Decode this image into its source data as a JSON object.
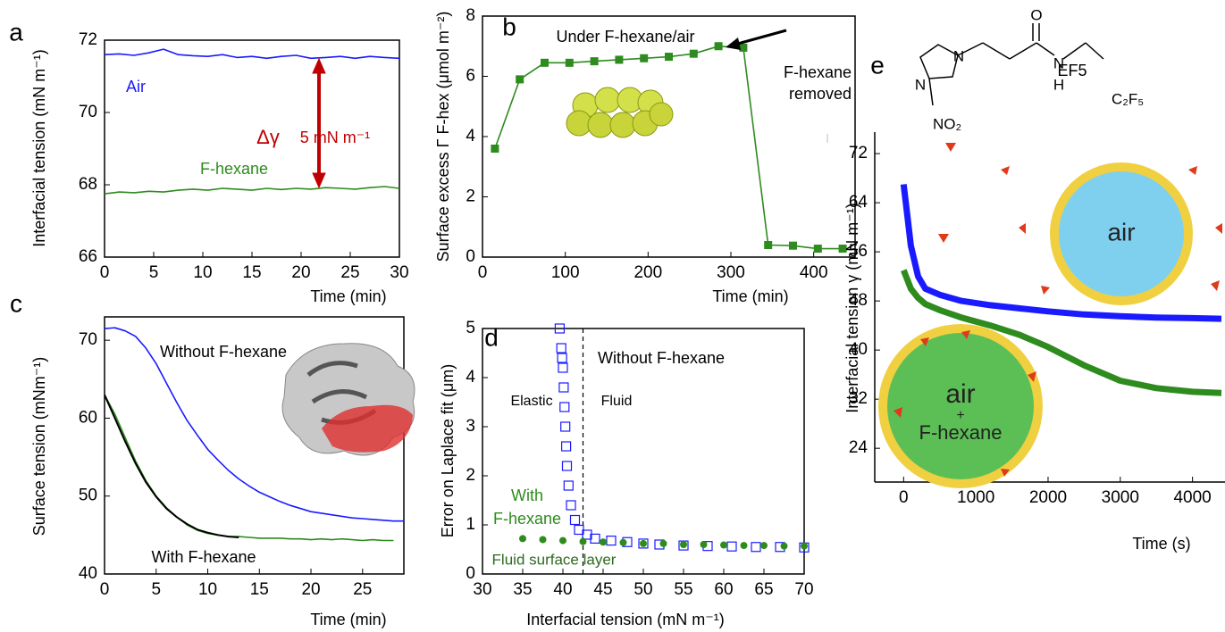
{
  "chart_data": [
    {
      "type": "line",
      "panel_label": "a",
      "frame": "box",
      "xlabel": "Time (min)",
      "ylabel": "Interfacial tension (mN m⁻¹)",
      "xlim": [
        0,
        30
      ],
      "ylim": [
        66,
        72
      ],
      "xticks": [
        0,
        5,
        10,
        15,
        20,
        25,
        30
      ],
      "yticks": [
        66,
        68,
        70,
        72
      ],
      "series": [
        {
          "name": "Air",
          "color": "#1a1aff",
          "x": [
            0,
            1.5,
            3,
            4.5,
            6,
            7.5,
            9,
            10.5,
            12,
            13.5,
            15,
            16.5,
            18,
            19.5,
            21,
            22.5,
            24,
            25.5,
            27,
            28.5,
            30
          ],
          "values": [
            71.6,
            71.62,
            71.58,
            71.65,
            71.75,
            71.6,
            71.57,
            71.55,
            71.6,
            71.52,
            71.55,
            71.5,
            71.55,
            71.58,
            71.5,
            71.52,
            71.55,
            71.5,
            71.55,
            71.52,
            71.5
          ]
        },
        {
          "name": "F-hexane",
          "color": "#2e8b1e",
          "x": [
            0,
            1.5,
            3,
            4.5,
            6,
            7.5,
            9,
            10.5,
            12,
            13.5,
            15,
            16.5,
            18,
            19.5,
            21,
            22.5,
            24,
            25.5,
            27,
            28.5,
            30
          ],
          "values": [
            67.75,
            67.8,
            67.78,
            67.82,
            67.8,
            67.85,
            67.88,
            67.85,
            67.9,
            67.88,
            67.85,
            67.9,
            67.87,
            67.9,
            67.88,
            67.92,
            67.9,
            67.88,
            67.92,
            67.95,
            67.9
          ]
        }
      ],
      "annotations": [
        "Δγ",
        "5 mN m⁻¹"
      ]
    },
    {
      "type": "line",
      "panel_label": "b",
      "frame": "box",
      "markers": true,
      "xlabel": "Time (min)",
      "ylabel": "Surface excess Γ F-hex (μmol m⁻²)",
      "xlim": [
        0,
        450
      ],
      "ylim": [
        0,
        8
      ],
      "xticks": [
        0,
        100,
        200,
        300,
        400
      ],
      "yticks": [
        0,
        2,
        4,
        6,
        8
      ],
      "series": [
        {
          "color": "#2e8b1e",
          "x": [
            15,
            45,
            75,
            105,
            135,
            165,
            195,
            225,
            255,
            285,
            315,
            345,
            375,
            405,
            435
          ],
          "values": [
            3.6,
            5.9,
            6.45,
            6.45,
            6.5,
            6.55,
            6.6,
            6.65,
            6.75,
            7.0,
            6.95,
            0.4,
            0.38,
            0.28,
            0.28
          ]
        }
      ],
      "annotations": [
        "Under F-hexane/air",
        "F-hexane",
        "removed"
      ]
    },
    {
      "type": "line",
      "panel_label": "c",
      "frame": "box",
      "xlabel": "Time (min)",
      "ylabel": "Surface tension (mNm⁻¹)",
      "xlim": [
        0,
        29
      ],
      "ylim": [
        40,
        73
      ],
      "xticks": [
        0,
        5,
        10,
        15,
        20,
        25
      ],
      "yticks": [
        40,
        50,
        60,
        70
      ],
      "series": [
        {
          "name": "Without F-hexane",
          "color": "#1a1aff",
          "x": [
            0,
            1,
            2,
            3,
            4,
            5,
            6,
            7,
            8,
            9,
            10,
            11,
            12,
            13,
            14,
            15,
            16,
            17,
            18,
            19,
            20,
            21,
            22,
            23,
            24,
            25,
            26,
            27,
            28,
            29
          ],
          "values": [
            71.5,
            71.6,
            71.2,
            70.5,
            69,
            67,
            64.5,
            62,
            59.7,
            57.8,
            56,
            54.6,
            53.3,
            52.2,
            51.3,
            50.5,
            49.9,
            49.3,
            48.8,
            48.4,
            48,
            47.8,
            47.6,
            47.4,
            47.2,
            47.1,
            47,
            46.9,
            46.8,
            46.8
          ]
        },
        {
          "name": "With F-hexane",
          "color": "#2e8b1e",
          "x": [
            0,
            1,
            2,
            3,
            4,
            5,
            6,
            7,
            8,
            9,
            10,
            11,
            12,
            13,
            14,
            15,
            16,
            17,
            18,
            19,
            20,
            21,
            22,
            23,
            24,
            25,
            26,
            27,
            28
          ],
          "values": [
            63,
            60.5,
            57.5,
            54.5,
            52,
            50,
            48.5,
            47.3,
            46.3,
            45.6,
            45.2,
            45,
            44.8,
            44.8,
            44.7,
            44.6,
            44.6,
            44.6,
            44.5,
            44.5,
            44.4,
            44.5,
            44.4,
            44.5,
            44.4,
            44.3,
            44.4,
            44.3,
            44.3
          ]
        },
        {
          "color": "#000000",
          "x": [
            0,
            1,
            2,
            3,
            4,
            5,
            6,
            7,
            8,
            9,
            10,
            11,
            12,
            13
          ],
          "values": [
            63,
            60,
            57,
            54.2,
            51.8,
            49.9,
            48.4,
            47.3,
            46.4,
            45.7,
            45.3,
            45,
            44.8,
            44.7
          ]
        }
      ]
    },
    {
      "type": "scatter",
      "panel_label": "d",
      "frame": "box",
      "vline": 42.5,
      "xlabel": "Interfacial tension (mN m⁻¹)",
      "ylabel": "Error on Laplace fit (μm)",
      "xlim": [
        30,
        70
      ],
      "ylim": [
        0,
        5
      ],
      "xticks": [
        30,
        35,
        40,
        45,
        50,
        55,
        60,
        65,
        70
      ],
      "yticks": [
        0,
        1,
        2,
        3,
        4,
        5
      ],
      "series": [
        {
          "color": "#1a1aff",
          "marker": "square",
          "x": [
            39.6,
            39.8,
            39.9,
            40,
            40.1,
            40.2,
            40.3,
            40.4,
            40.5,
            40.7,
            41,
            41.5,
            42,
            43,
            44,
            46,
            48,
            50,
            52,
            55,
            58,
            61,
            64,
            67,
            70
          ],
          "values": [
            5,
            4.6,
            4.4,
            4.2,
            3.8,
            3.4,
            3,
            2.6,
            2.2,
            1.8,
            1.4,
            1.1,
            0.9,
            0.8,
            0.72,
            0.68,
            0.65,
            0.62,
            0.6,
            0.58,
            0.57,
            0.56,
            0.55,
            0.55,
            0.54
          ]
        },
        {
          "color": "#2e8b1e",
          "marker": "circle",
          "x": [
            35,
            37.5,
            40,
            42.5,
            45,
            47.5,
            50,
            52.5,
            55,
            57.5,
            60,
            62.5,
            65,
            67.5,
            70
          ],
          "values": [
            0.72,
            0.7,
            0.68,
            0.66,
            0.65,
            0.64,
            0.62,
            0.62,
            0.6,
            0.6,
            0.59,
            0.58,
            0.58,
            0.57,
            0.57
          ]
        }
      ],
      "annotations": [
        "Without F-hexane",
        "Elastic",
        "Fluid",
        "With",
        "F-hexane",
        "Fluid surface layer"
      ]
    },
    {
      "type": "line",
      "panel_label": "e",
      "frame": "axes",
      "thick": true,
      "xlabel": "Time (s)",
      "ylabel": "Interfacial tension γ (mN m⁻¹)",
      "xlim": [
        -400,
        4450
      ],
      "ylim": [
        18.5,
        75.5
      ],
      "xticks": [
        0,
        1000,
        2000,
        3000,
        4000
      ],
      "yticks": [
        24,
        32,
        40,
        48,
        56,
        64,
        72
      ],
      "series": [
        {
          "color": "#1a1aff",
          "x": [
            0,
            50,
            100,
            200,
            300,
            500,
            800,
            1200,
            1600,
            2000,
            2500,
            3000,
            3500,
            4000,
            4400
          ],
          "values": [
            67,
            62,
            57,
            52,
            50,
            49,
            48,
            47.3,
            46.8,
            46.3,
            45.8,
            45.5,
            45.3,
            45.2,
            45.1
          ]
        },
        {
          "color": "#2e8b1e",
          "x": [
            0,
            50,
            100,
            200,
            300,
            500,
            800,
            1200,
            1600,
            2000,
            2500,
            3000,
            3500,
            4000,
            4400
          ],
          "values": [
            53,
            51.5,
            50,
            48.5,
            47.5,
            46.5,
            45.3,
            44,
            42.5,
            40.5,
            37.5,
            35,
            33.8,
            33.2,
            33
          ]
        }
      ],
      "annotations": [
        "EF5",
        "air",
        "air",
        "+",
        "F-hexane"
      ],
      "structure_labels": [
        "N",
        "N",
        "NO₂",
        "O",
        "N",
        "H",
        "C₂F₅"
      ]
    }
  ]
}
